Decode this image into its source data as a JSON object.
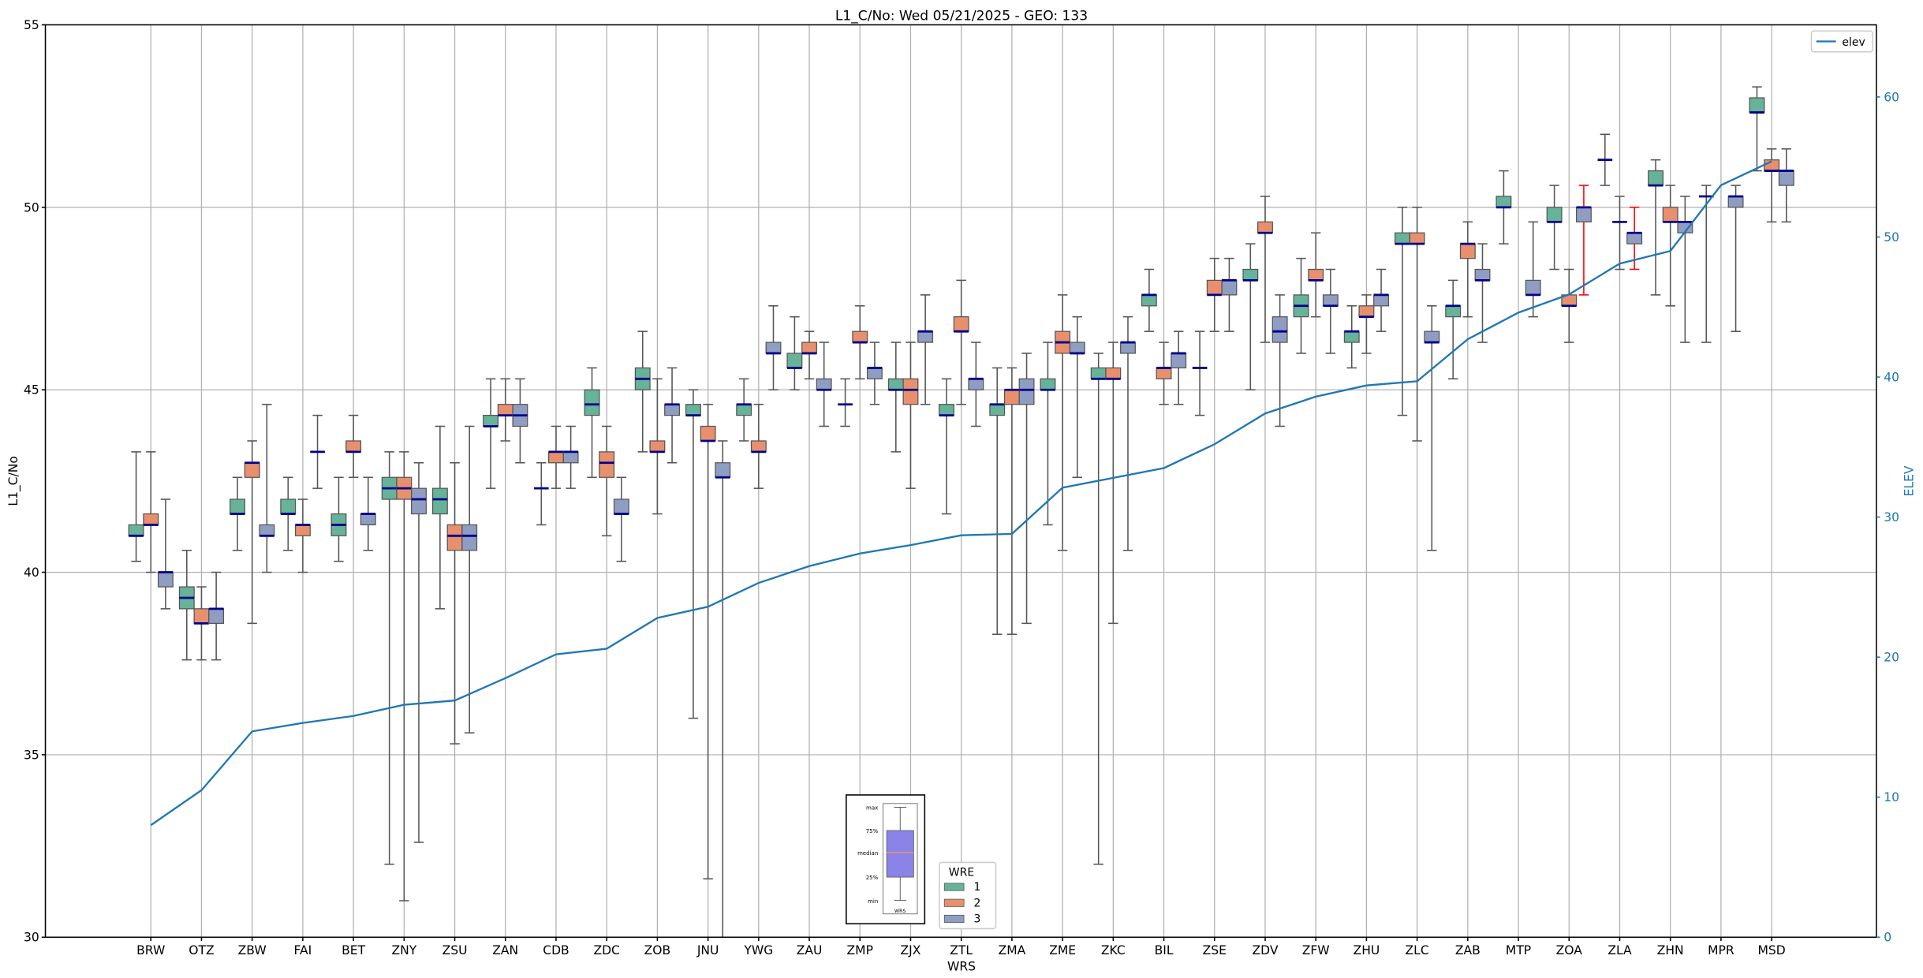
{
  "chart_data": {
    "type": "box",
    "title": "L1_C/No: Wed 05/21/2025 - GEO: 133",
    "xlabel": "WRS",
    "ylabel": "L1_C/No",
    "y2label": "ELEV",
    "ylim": [
      30,
      55
    ],
    "y2lim": [
      0,
      65
    ],
    "yticks": [
      30,
      35,
      40,
      45,
      50,
      55
    ],
    "y2ticks": [
      0,
      10,
      20,
      30,
      40,
      50,
      60
    ],
    "grid": true,
    "colors": {
      "1": "#66b399",
      "2": "#e8906d",
      "3": "#8f9dc2",
      "median": "#00008b",
      "elev": "#1f77b4",
      "red_whisker": "#ff0000",
      "whisker": "#555555"
    },
    "legend_wre": {
      "title": "WRE",
      "entries": [
        "1",
        "2",
        "3"
      ],
      "placement": "bottom-center"
    },
    "legend_elev": {
      "label": "elev",
      "placement": "top-right"
    },
    "inset_key": {
      "labels": [
        "max",
        "75%",
        "median",
        "25%",
        "min"
      ],
      "xlabel": "WRS"
    },
    "categories": [
      "BRW",
      "OTZ",
      "ZBW",
      "FAI",
      "BET",
      "ZNY",
      "ZSU",
      "ZAN",
      "CDB",
      "ZDC",
      "ZOB",
      "JNU",
      "YWG",
      "ZAU",
      "ZMP",
      "ZJX",
      "ZTL",
      "ZMA",
      "ZME",
      "ZKC",
      "BIL",
      "ZSE",
      "ZDV",
      "ZFW",
      "ZHU",
      "ZLC",
      "ZAB",
      "MTP",
      "ZOA",
      "ZLA",
      "ZHN",
      "MPR",
      "MSD"
    ],
    "elev": [
      8.0,
      10.5,
      14.7,
      15.3,
      15.8,
      16.6,
      16.9,
      18.5,
      20.2,
      20.6,
      22.8,
      23.6,
      25.3,
      26.5,
      27.4,
      28.0,
      28.7,
      28.8,
      32.1,
      32.8,
      33.5,
      35.2,
      37.4,
      38.6,
      39.4,
      39.7,
      42.7,
      44.6,
      45.9,
      48.1,
      49.0,
      53.7,
      55.4
    ],
    "boxes_note": "each entry: [min, q1, median, q3, max] per WRE 1,2,3; null = no data; r = red whisker",
    "boxes": [
      [
        [
          40.3,
          41.0,
          41.0,
          41.3,
          43.3
        ],
        [
          40.0,
          41.3,
          41.3,
          41.6,
          43.3
        ],
        [
          39.0,
          39.6,
          40.0,
          40.0,
          42.0
        ]
      ],
      [
        [
          37.6,
          39.0,
          39.3,
          39.6,
          40.6
        ],
        [
          37.6,
          38.6,
          38.6,
          39.0,
          39.6
        ],
        [
          37.6,
          38.6,
          39.0,
          39.0,
          40.0
        ]
      ],
      [
        [
          40.6,
          41.6,
          41.6,
          42.0,
          42.6
        ],
        [
          38.6,
          42.6,
          43.0,
          43.0,
          43.6
        ],
        [
          40.0,
          41.0,
          41.0,
          41.3,
          44.6
        ]
      ],
      [
        [
          40.6,
          41.6,
          41.6,
          42.0,
          42.6
        ],
        [
          40.0,
          41.0,
          41.3,
          41.3,
          42.0
        ],
        [
          42.3,
          43.3,
          43.3,
          43.3,
          44.3
        ]
      ],
      [
        [
          40.3,
          41.0,
          41.3,
          41.6,
          42.6
        ],
        [
          42.6,
          43.3,
          43.3,
          43.6,
          44.3
        ],
        [
          40.6,
          41.3,
          41.6,
          41.6,
          42.6
        ]
      ],
      [
        [
          32.0,
          42.0,
          42.3,
          42.6,
          43.3
        ],
        [
          31.0,
          42.0,
          42.3,
          42.6,
          43.3
        ],
        [
          32.6,
          41.6,
          42.0,
          42.3,
          43.0
        ]
      ],
      [
        [
          39.0,
          41.6,
          42.0,
          42.3,
          44.0
        ],
        [
          35.3,
          40.6,
          41.0,
          41.3,
          43.0
        ],
        [
          35.6,
          40.6,
          41.0,
          41.3,
          44.0
        ]
      ],
      [
        [
          42.3,
          44.0,
          44.0,
          44.3,
          45.3
        ],
        [
          43.6,
          44.3,
          44.3,
          44.6,
          45.3
        ],
        [
          43.0,
          44.0,
          44.3,
          44.6,
          45.3
        ]
      ],
      [
        [
          41.3,
          42.3,
          42.3,
          42.3,
          43.0
        ],
        [
          42.3,
          43.0,
          43.3,
          43.3,
          44.0
        ],
        [
          42.3,
          43.0,
          43.3,
          43.3,
          44.0
        ]
      ],
      [
        [
          42.6,
          44.3,
          44.6,
          45.0,
          45.6
        ],
        [
          41.0,
          42.6,
          43.0,
          43.3,
          44.0
        ],
        [
          40.3,
          41.6,
          41.6,
          42.0,
          42.6
        ]
      ],
      [
        [
          43.3,
          45.0,
          45.3,
          45.6,
          46.6
        ],
        [
          41.6,
          43.3,
          43.3,
          43.6,
          45.3
        ],
        [
          43.0,
          44.3,
          44.6,
          44.6,
          45.6
        ]
      ],
      [
        [
          36.0,
          44.3,
          44.3,
          44.6,
          45.0
        ],
        [
          31.6,
          43.6,
          43.6,
          44.0,
          44.6
        ],
        [
          30.0,
          42.6,
          42.6,
          43.0,
          43.6
        ]
      ],
      [
        [
          43.6,
          44.3,
          44.6,
          44.6,
          45.3
        ],
        [
          42.3,
          43.3,
          43.3,
          43.6,
          44.6
        ],
        [
          45.0,
          46.0,
          46.0,
          46.3,
          47.3
        ]
      ],
      [
        [
          45.0,
          45.6,
          45.6,
          46.0,
          47.0
        ],
        [
          45.3,
          46.0,
          46.0,
          46.3,
          46.6
        ],
        [
          44.0,
          45.0,
          45.0,
          45.3,
          46.3
        ]
      ],
      [
        [
          44.0,
          44.6,
          44.6,
          44.6,
          45.3
        ],
        [
          45.3,
          46.3,
          46.3,
          46.6,
          47.3
        ],
        [
          44.6,
          45.3,
          45.6,
          45.6,
          46.3
        ]
      ],
      [
        [
          43.3,
          45.0,
          45.0,
          45.3,
          46.3
        ],
        [
          42.3,
          44.6,
          45.0,
          45.3,
          46.3
        ],
        [
          44.6,
          46.3,
          46.6,
          46.6,
          47.6
        ]
      ],
      [
        [
          41.6,
          44.3,
          44.3,
          44.6,
          45.3
        ],
        [
          44.6,
          46.6,
          46.6,
          47.0,
          48.0
        ],
        [
          44.0,
          45.0,
          45.3,
          45.3,
          46.3
        ]
      ],
      [
        [
          38.3,
          44.3,
          44.6,
          44.6,
          45.6
        ],
        [
          38.3,
          44.6,
          45.0,
          45.0,
          45.6
        ],
        [
          38.6,
          44.6,
          45.0,
          45.3,
          46.0
        ]
      ],
      [
        [
          41.3,
          45.0,
          45.0,
          45.3,
          46.3
        ],
        [
          40.6,
          46.0,
          46.3,
          46.6,
          47.6
        ],
        [
          42.6,
          46.0,
          46.0,
          46.3,
          47.0
        ]
      ],
      [
        [
          32.0,
          45.3,
          45.3,
          45.6,
          46.0
        ],
        [
          38.6,
          45.3,
          45.3,
          45.6,
          46.3
        ],
        [
          40.6,
          46.0,
          46.3,
          46.3,
          47.0
        ]
      ],
      [
        [
          46.6,
          47.3,
          47.6,
          47.6,
          48.3
        ],
        [
          44.6,
          45.3,
          45.6,
          45.6,
          46.3
        ],
        [
          44.6,
          45.6,
          46.0,
          46.0,
          46.6
        ]
      ],
      [
        [
          44.3,
          45.6,
          45.6,
          45.6,
          46.6
        ],
        [
          46.6,
          47.6,
          47.6,
          48.0,
          48.6
        ],
        [
          46.6,
          47.6,
          48.0,
          48.0,
          48.6
        ]
      ],
      [
        [
          45.0,
          48.0,
          48.0,
          48.3,
          49.0
        ],
        [
          46.3,
          49.3,
          49.3,
          49.6,
          50.3
        ],
        [
          44.0,
          46.3,
          46.6,
          47.0,
          47.6
        ]
      ],
      [
        [
          46.0,
          47.0,
          47.3,
          47.6,
          48.6
        ],
        [
          47.0,
          48.0,
          48.0,
          48.3,
          49.3
        ],
        [
          46.0,
          47.3,
          47.3,
          47.6,
          48.3
        ]
      ],
      [
        [
          45.6,
          46.3,
          46.6,
          46.6,
          47.3
        ],
        [
          46.0,
          47.0,
          47.0,
          47.3,
          47.6
        ],
        [
          46.6,
          47.3,
          47.6,
          47.6,
          48.3
        ]
      ],
      [
        [
          44.3,
          49.0,
          49.0,
          49.3,
          50.0
        ],
        [
          43.6,
          49.0,
          49.0,
          49.3,
          50.0
        ],
        [
          40.6,
          46.3,
          46.3,
          46.6,
          47.3
        ]
      ],
      [
        [
          45.3,
          47.0,
          47.3,
          47.3,
          48.0
        ],
        [
          47.0,
          48.6,
          49.0,
          49.0,
          49.6
        ],
        [
          46.3,
          48.0,
          48.0,
          48.3,
          49.0
        ]
      ],
      [
        [
          49.0,
          50.0,
          50.0,
          50.3,
          51.0
        ],
        null,
        [
          47.0,
          47.6,
          47.6,
          48.0,
          49.6
        ]
      ],
      [
        [
          48.3,
          49.6,
          49.6,
          50.0,
          50.6
        ],
        [
          46.3,
          47.3,
          47.3,
          47.6,
          48.3
        ],
        [
          47.6,
          49.6,
          50.0,
          50.0,
          50.6,
          "r"
        ]
      ],
      [
        [
          50.6,
          51.3,
          51.3,
          51.3,
          52.0
        ],
        [
          48.3,
          49.6,
          49.6,
          49.6,
          50.3
        ],
        [
          48.3,
          49.0,
          49.3,
          49.3,
          50.0,
          "r"
        ]
      ],
      [
        [
          47.6,
          50.6,
          50.6,
          51.0,
          51.3
        ],
        [
          47.3,
          49.6,
          49.6,
          50.0,
          50.6
        ],
        [
          46.3,
          49.3,
          49.6,
          49.6,
          50.3
        ]
      ],
      [
        [
          46.3,
          50.3,
          50.3,
          50.3,
          50.6
        ],
        null,
        [
          46.6,
          50.0,
          50.3,
          50.3,
          50.6
        ]
      ],
      [
        [
          51.0,
          52.6,
          52.6,
          53.0,
          53.3
        ],
        [
          49.6,
          51.0,
          51.0,
          51.3,
          51.6
        ],
        [
          49.6,
          50.6,
          51.0,
          51.0,
          51.6
        ]
      ]
    ]
  }
}
